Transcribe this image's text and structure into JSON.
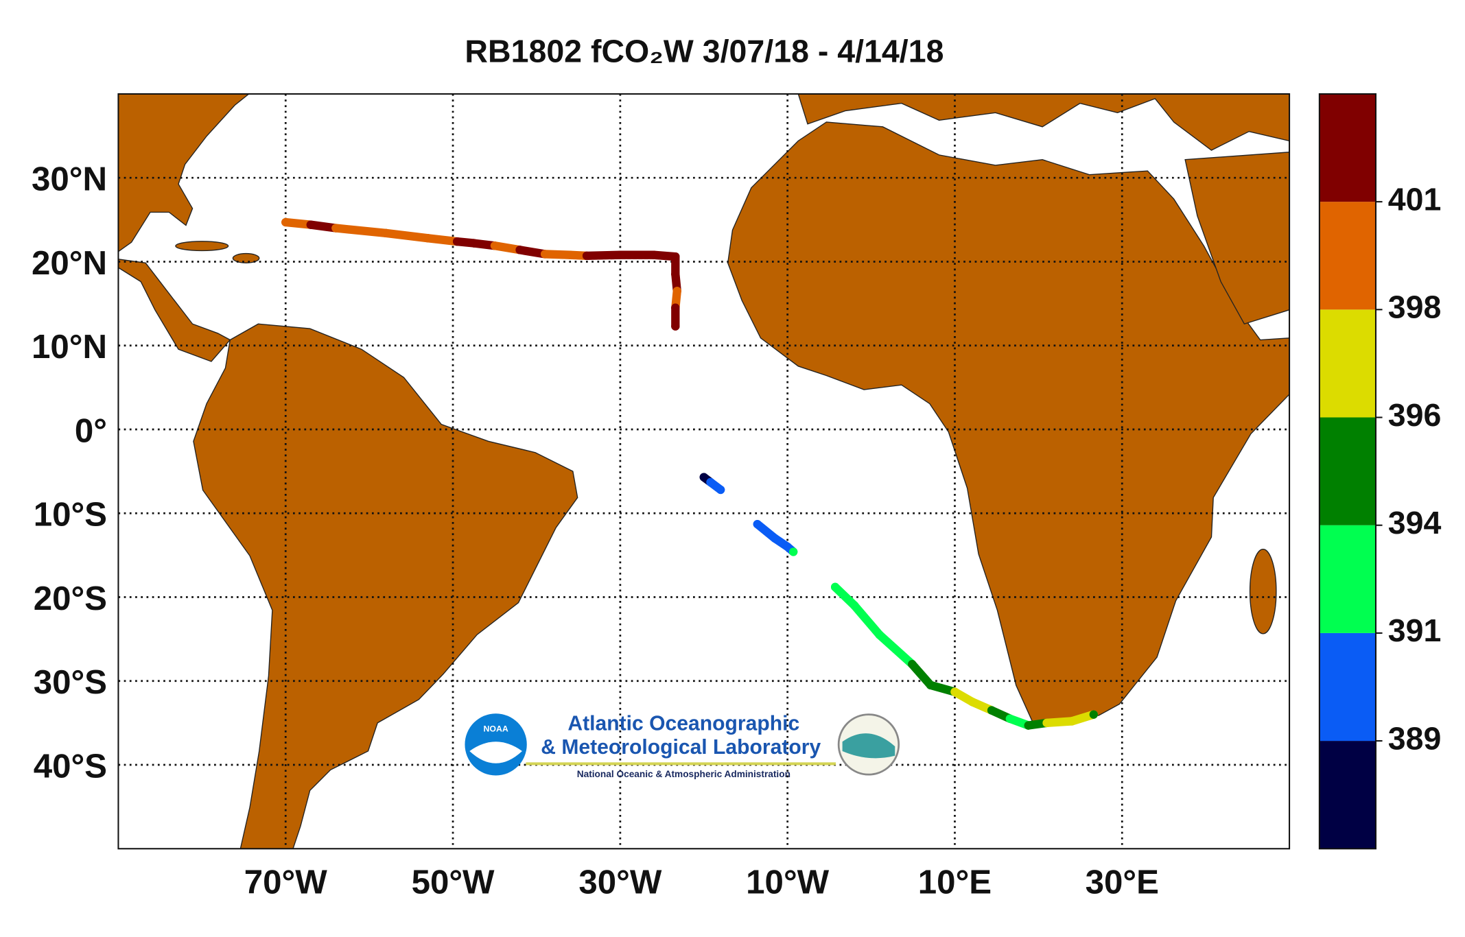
{
  "chart_data": {
    "type": "map",
    "title": "RB1802 fCO₂W 3/07/18 - 4/14/18",
    "xlim": [
      -90,
      50
    ],
    "ylim": [
      -50,
      40
    ],
    "xticks": [
      {
        "value": -70,
        "label": "70°W"
      },
      {
        "value": -50,
        "label": "50°W"
      },
      {
        "value": -30,
        "label": "30°W"
      },
      {
        "value": -10,
        "label": "10°W"
      },
      {
        "value": 10,
        "label": "10°E"
      },
      {
        "value": 30,
        "label": "30°E"
      }
    ],
    "yticks": [
      {
        "value": 30,
        "label": "30°N"
      },
      {
        "value": 20,
        "label": "20°N"
      },
      {
        "value": 10,
        "label": "10°N"
      },
      {
        "value": 0,
        "label": "0°"
      },
      {
        "value": -10,
        "label": "10°S"
      },
      {
        "value": -20,
        "label": "20°S"
      },
      {
        "value": -30,
        "label": "30°S"
      },
      {
        "value": -40,
        "label": "40°S"
      }
    ],
    "grid": true,
    "land_color": "#bb6100",
    "track": {
      "x": [
        -70,
        -67,
        -64,
        -58,
        -53,
        -49.5,
        -47.5,
        -45,
        -42,
        -39,
        -36,
        -34,
        -30,
        -26,
        -23.4,
        -23.4,
        -23.2,
        -23.4,
        -23.4,
        null,
        -20,
        -19.2,
        -18,
        null,
        -13.6,
        -11.5,
        -10,
        -9.3,
        null,
        -4.3,
        -2,
        1,
        4.9,
        7.1,
        10,
        12.1,
        14.4,
        16.6,
        18.8,
        21,
        24,
        26.6
      ],
      "y": [
        24.7,
        24.4,
        24.0,
        23.4,
        22.8,
        22.4,
        22.2,
        21.9,
        21.4,
        20.9,
        20.8,
        20.7,
        20.8,
        20.8,
        20.6,
        18.5,
        16.5,
        14.5,
        12.3,
        null,
        -5.7,
        -6.3,
        -7.2,
        null,
        -11.3,
        -13,
        -14,
        -14.6,
        null,
        -18.8,
        -21,
        -24.5,
        -28,
        -30.5,
        -31.3,
        -32.5,
        -33.5,
        -34.5,
        -35.3,
        -35,
        -34.8,
        -34
      ],
      "values": [
        399.5,
        402,
        399.5,
        399.5,
        399.5,
        402,
        402,
        399.5,
        402,
        399.5,
        399.5,
        402,
        402,
        402,
        402,
        402,
        399.5,
        402,
        402,
        null,
        388,
        390,
        390,
        null,
        390,
        390,
        390,
        392.5,
        null,
        392.5,
        392.5,
        392.5,
        395,
        395,
        397,
        397,
        395,
        392.5,
        395,
        397,
        397,
        395
      ]
    },
    "colorbar": {
      "ticks": [
        389,
        391,
        394,
        396,
        398,
        401
      ],
      "colors": [
        "#000044",
        "#0a5cf5",
        "#00ff50",
        "#008000",
        "#dcdc00",
        "#e06400",
        "#800000"
      ]
    },
    "logo": {
      "emblem": "NOAA",
      "line1": "Atlantic Oceanographic",
      "line2": "& Meteorological Laboratory",
      "line3": "National Oceanic & Atmospheric Administration"
    }
  }
}
